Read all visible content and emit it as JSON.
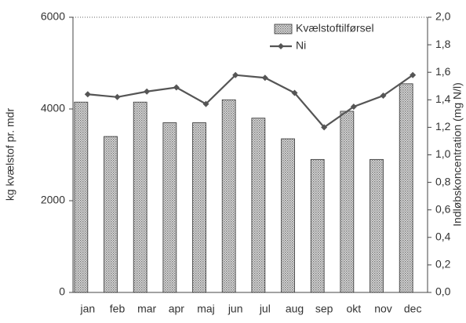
{
  "chart_data": {
    "type": "bar-line",
    "categories": [
      "jan",
      "feb",
      "mar",
      "apr",
      "maj",
      "jun",
      "jul",
      "aug",
      "sep",
      "okt",
      "nov",
      "dec"
    ],
    "series": [
      {
        "name": "Kvælstoftilførsel",
        "type": "bar",
        "color": "#999999",
        "values": [
          4150,
          3400,
          4150,
          3700,
          3700,
          4200,
          3800,
          3350,
          2900,
          3950,
          2900,
          4550
        ]
      },
      {
        "name": "Ni",
        "type": "line",
        "axis": "y2",
        "color": "#555555",
        "values": [
          1.44,
          1.42,
          1.46,
          1.49,
          1.37,
          1.58,
          1.56,
          1.45,
          1.2,
          1.35,
          1.43,
          1.58
        ]
      }
    ],
    "ylabel": "kg kvælstof pr. mdr",
    "y2label": "Indløbskoncentration (mg N/l)",
    "ylim": [
      0,
      6000
    ],
    "yticks": [
      0,
      2000,
      4000,
      6000
    ],
    "y2lim": [
      0,
      2
    ],
    "y2ticks": [
      {
        "value": 0,
        "label": "0,0"
      },
      {
        "value": 0.2,
        "label": "0,2"
      },
      {
        "value": 0.4,
        "label": "0,4"
      },
      {
        "value": 0.6,
        "label": "0,6"
      },
      {
        "value": 0.8,
        "label": "0,8"
      },
      {
        "value": 1,
        "label": "1,0"
      },
      {
        "value": 1.2,
        "label": "1,2"
      },
      {
        "value": 1.4,
        "label": "1,4"
      },
      {
        "value": 1.6,
        "label": "1,6"
      },
      {
        "value": 1.8,
        "label": "1,8"
      },
      {
        "value": 2,
        "label": "2,0"
      }
    ],
    "legend": "upper-right"
  }
}
